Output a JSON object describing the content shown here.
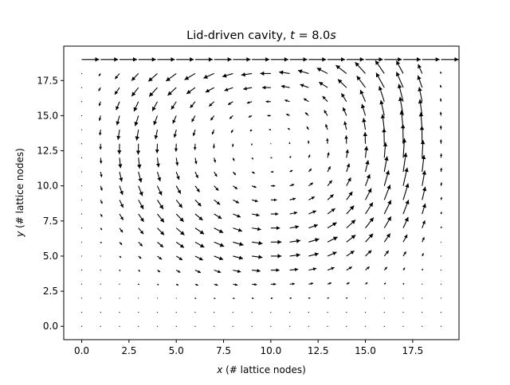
{
  "chart_data": {
    "type": "quiver",
    "title_main": "Lid-driven cavity, ",
    "title_t": "t",
    "title_eq": " = 8.0",
    "title_s": "s",
    "xlabel_var": "x",
    "xlabel_rest": " (# lattice nodes)",
    "ylabel_var": "y",
    "ylabel_rest": " (# lattice nodes)",
    "xlim": [
      -0.95,
      19.95
    ],
    "ylim": [
      -0.95,
      19.95
    ],
    "xticks": [
      0.0,
      2.5,
      5.0,
      7.5,
      10.0,
      12.5,
      15.0,
      17.5
    ],
    "xtick_labels": [
      "0.0",
      "2.5",
      "5.0",
      "7.5",
      "10.0",
      "12.5",
      "15.0",
      "17.5"
    ],
    "yticks": [
      0.0,
      2.5,
      5.0,
      7.5,
      10.0,
      12.5,
      15.0,
      17.5
    ],
    "ytick_labels": [
      "0.0",
      "2.5",
      "5.0",
      "7.5",
      "10.0",
      "12.5",
      "15.0",
      "17.5"
    ],
    "grid_nx": 20,
    "grid_ny": 20,
    "vortex_center": [
      10.0,
      12.8
    ],
    "lid_velocity": 1.0,
    "arrow_color": "#000000"
  }
}
